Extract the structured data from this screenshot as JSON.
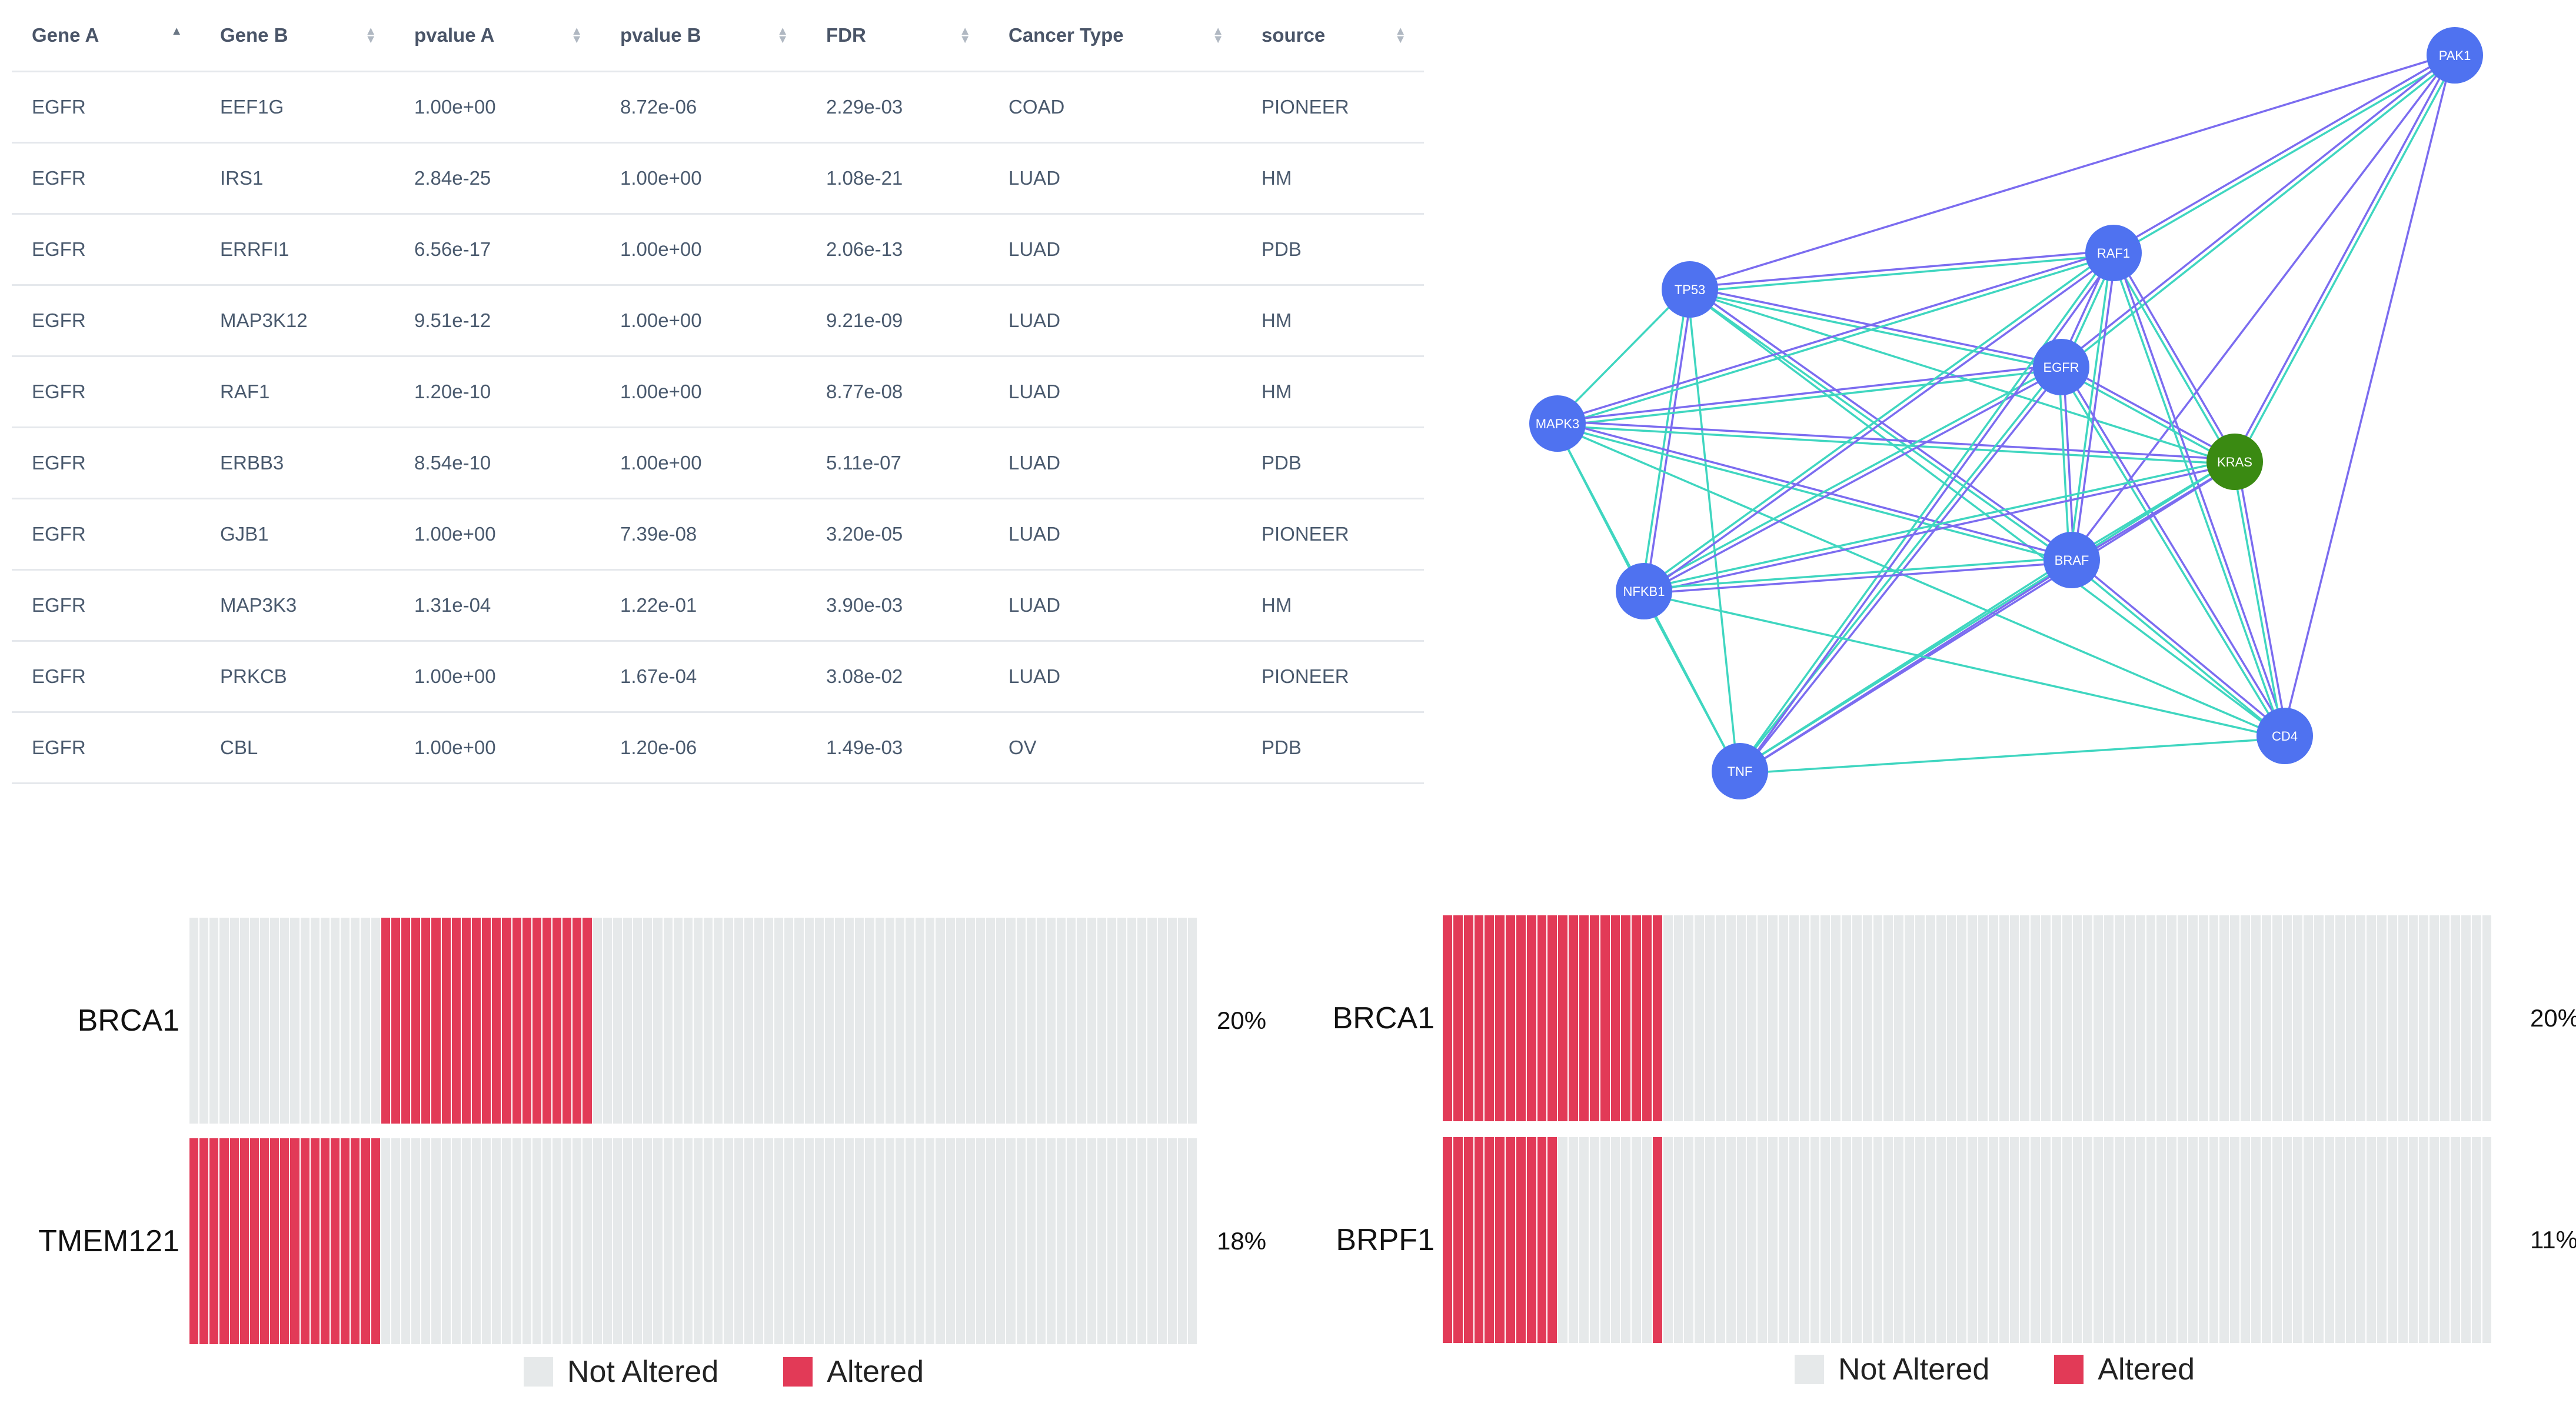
{
  "table": {
    "columns": [
      "Gene A",
      "Gene B",
      "pvalue A",
      "pvalue B",
      "FDR",
      "Cancer Type",
      "source"
    ],
    "sorted_column": 0,
    "rows": [
      [
        "EGFR",
        "EEF1G",
        "1.00e+00",
        "8.72e-06",
        "2.29e-03",
        "COAD",
        "PIONEER"
      ],
      [
        "EGFR",
        "IRS1",
        "2.84e-25",
        "1.00e+00",
        "1.08e-21",
        "LUAD",
        "HM"
      ],
      [
        "EGFR",
        "ERRFI1",
        "6.56e-17",
        "1.00e+00",
        "2.06e-13",
        "LUAD",
        "PDB"
      ],
      [
        "EGFR",
        "MAP3K12",
        "9.51e-12",
        "1.00e+00",
        "9.21e-09",
        "LUAD",
        "HM"
      ],
      [
        "EGFR",
        "RAF1",
        "1.20e-10",
        "1.00e+00",
        "8.77e-08",
        "LUAD",
        "HM"
      ],
      [
        "EGFR",
        "ERBB3",
        "8.54e-10",
        "1.00e+00",
        "5.11e-07",
        "LUAD",
        "PDB"
      ],
      [
        "EGFR",
        "GJB1",
        "1.00e+00",
        "7.39e-08",
        "3.20e-05",
        "LUAD",
        "PIONEER"
      ],
      [
        "EGFR",
        "MAP3K3",
        "1.31e-04",
        "1.22e-01",
        "3.90e-03",
        "LUAD",
        "HM"
      ],
      [
        "EGFR",
        "PRKCB",
        "1.00e+00",
        "1.67e-04",
        "3.08e-02",
        "LUAD",
        "PIONEER"
      ],
      [
        "EGFR",
        "CBL",
        "1.00e+00",
        "1.20e-06",
        "1.49e-03",
        "OV",
        "PDB"
      ]
    ]
  },
  "network": {
    "colors": {
      "node": "#4f72f0",
      "highlight": "#3a8a12",
      "edge_a": "#7b6cf0",
      "edge_b": "#3fd6c0"
    },
    "nodes": [
      {
        "id": "PAK1",
        "highlight": false
      },
      {
        "id": "RAF1",
        "highlight": false
      },
      {
        "id": "TP53",
        "highlight": false
      },
      {
        "id": "EGFR",
        "highlight": false
      },
      {
        "id": "MAPK3",
        "highlight": false
      },
      {
        "id": "KRAS",
        "highlight": true
      },
      {
        "id": "BRAF",
        "highlight": false
      },
      {
        "id": "NFKB1",
        "highlight": false
      },
      {
        "id": "CD4",
        "highlight": false
      },
      {
        "id": "TNF",
        "highlight": false
      }
    ],
    "edges": [
      [
        "TP53",
        "PAK1",
        "a"
      ],
      [
        "RAF1",
        "PAK1",
        "a"
      ],
      [
        "RAF1",
        "PAK1",
        "b"
      ],
      [
        "EGFR",
        "PAK1",
        "a"
      ],
      [
        "EGFR",
        "PAK1",
        "b"
      ],
      [
        "KRAS",
        "PAK1",
        "a"
      ],
      [
        "KRAS",
        "PAK1",
        "b"
      ],
      [
        "BRAF",
        "PAK1",
        "a"
      ],
      [
        "CD4",
        "PAK1",
        "a"
      ],
      [
        "TP53",
        "RAF1",
        "a"
      ],
      [
        "TP53",
        "RAF1",
        "b"
      ],
      [
        "TP53",
        "EGFR",
        "a"
      ],
      [
        "TP53",
        "EGFR",
        "b"
      ],
      [
        "TP53",
        "MAPK3",
        "b"
      ],
      [
        "TP53",
        "NFKB1",
        "a"
      ],
      [
        "TP53",
        "NFKB1",
        "b"
      ],
      [
        "TP53",
        "BRAF",
        "a"
      ],
      [
        "TP53",
        "BRAF",
        "b"
      ],
      [
        "TP53",
        "KRAS",
        "b"
      ],
      [
        "TP53",
        "TNF",
        "b"
      ],
      [
        "TP53",
        "CD4",
        "b"
      ],
      [
        "MAPK3",
        "RAF1",
        "a"
      ],
      [
        "MAPK3",
        "RAF1",
        "b"
      ],
      [
        "MAPK3",
        "EGFR",
        "a"
      ],
      [
        "MAPK3",
        "EGFR",
        "b"
      ],
      [
        "MAPK3",
        "KRAS",
        "a"
      ],
      [
        "MAPK3",
        "KRAS",
        "b"
      ],
      [
        "MAPK3",
        "BRAF",
        "a"
      ],
      [
        "MAPK3",
        "BRAF",
        "b"
      ],
      [
        "MAPK3",
        "NFKB1",
        "b"
      ],
      [
        "MAPK3",
        "TNF",
        "b"
      ],
      [
        "MAPK3",
        "CD4",
        "b"
      ],
      [
        "EGFR",
        "RAF1",
        "a"
      ],
      [
        "EGFR",
        "RAF1",
        "b"
      ],
      [
        "EGFR",
        "KRAS",
        "a"
      ],
      [
        "EGFR",
        "KRAS",
        "b"
      ],
      [
        "EGFR",
        "BRAF",
        "a"
      ],
      [
        "EGFR",
        "BRAF",
        "b"
      ],
      [
        "EGFR",
        "NFKB1",
        "a"
      ],
      [
        "EGFR",
        "NFKB1",
        "b"
      ],
      [
        "EGFR",
        "TNF",
        "a"
      ],
      [
        "EGFR",
        "TNF",
        "b"
      ],
      [
        "EGFR",
        "CD4",
        "a"
      ],
      [
        "EGFR",
        "CD4",
        "b"
      ],
      [
        "RAF1",
        "KRAS",
        "a"
      ],
      [
        "RAF1",
        "KRAS",
        "b"
      ],
      [
        "RAF1",
        "BRAF",
        "a"
      ],
      [
        "RAF1",
        "BRAF",
        "b"
      ],
      [
        "RAF1",
        "NFKB1",
        "a"
      ],
      [
        "RAF1",
        "NFKB1",
        "b"
      ],
      [
        "RAF1",
        "TNF",
        "a"
      ],
      [
        "RAF1",
        "TNF",
        "b"
      ],
      [
        "RAF1",
        "CD4",
        "a"
      ],
      [
        "RAF1",
        "CD4",
        "b"
      ],
      [
        "KRAS",
        "BRAF",
        "a"
      ],
      [
        "KRAS",
        "BRAF",
        "b"
      ],
      [
        "KRAS",
        "NFKB1",
        "a"
      ],
      [
        "KRAS",
        "NFKB1",
        "b"
      ],
      [
        "KRAS",
        "TNF",
        "a"
      ],
      [
        "KRAS",
        "TNF",
        "b"
      ],
      [
        "KRAS",
        "CD4",
        "a"
      ],
      [
        "KRAS",
        "CD4",
        "b"
      ],
      [
        "BRAF",
        "NFKB1",
        "a"
      ],
      [
        "BRAF",
        "NFKB1",
        "b"
      ],
      [
        "BRAF",
        "TNF",
        "a"
      ],
      [
        "BRAF",
        "TNF",
        "b"
      ],
      [
        "BRAF",
        "CD4",
        "a"
      ],
      [
        "BRAF",
        "CD4",
        "b"
      ],
      [
        "NFKB1",
        "TNF",
        "b"
      ],
      [
        "NFKB1",
        "CD4",
        "b"
      ],
      [
        "TNF",
        "CD4",
        "b"
      ]
    ]
  },
  "oncoprints": [
    {
      "tracks": [
        {
          "gene": "BRCA1",
          "percent": "20%",
          "cells": 100,
          "altered": [
            [
              19,
              39
            ]
          ]
        },
        {
          "gene": "TMEM121",
          "percent": "18%",
          "cells": 100,
          "altered": [
            [
              0,
              18
            ]
          ]
        }
      ]
    },
    {
      "tracks": [
        {
          "gene": "BRCA1",
          "percent": "20%",
          "cells": 100,
          "altered": [
            [
              0,
              20
            ]
          ]
        },
        {
          "gene": "BRPF1",
          "percent": "11%",
          "cells": 100,
          "altered": [
            [
              0,
              10
            ],
            [
              20,
              20
            ]
          ]
        }
      ]
    }
  ],
  "legend": {
    "not_altered_label": "Not Altered",
    "altered_label": "Altered",
    "not_altered_color": "#e6e9ea",
    "altered_color": "#e23a57"
  }
}
